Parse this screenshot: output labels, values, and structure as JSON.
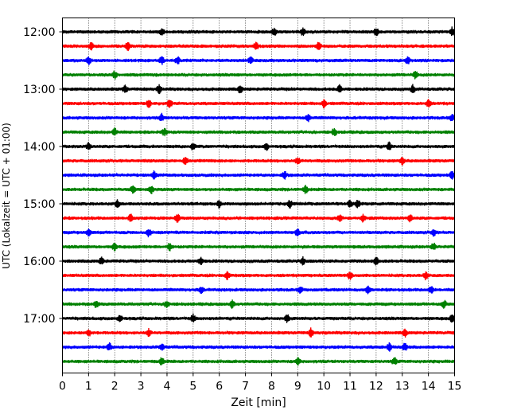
{
  "chart_data": {
    "type": "line",
    "title": "",
    "xlabel": "Zeit  [min]",
    "ylabel": "UTC (Lokalzeit = UTC + 01:00)",
    "xlim": [
      0,
      15
    ],
    "x_ticks": [
      0,
      1,
      2,
      3,
      4,
      5,
      6,
      7,
      8,
      9,
      10,
      11,
      12,
      13,
      14,
      15
    ],
    "x_tick_labels": [
      "0",
      "1",
      "2",
      "3",
      "4",
      "5",
      "6",
      "7",
      "8",
      "9",
      "10",
      "11",
      "12",
      "13",
      "14",
      "15"
    ],
    "y_tick_labels": [
      "12:00",
      "13:00",
      "14:00",
      "15:00",
      "16:00",
      "17:00"
    ],
    "grid": "vertical dotted lines at every minute",
    "trace_colors": [
      "#000000",
      "#ff0000",
      "#0000ff",
      "#008000"
    ],
    "traces_start": [
      "12:00",
      "12:15",
      "12:30",
      "12:45",
      "13:00",
      "13:15",
      "13:30",
      "13:45",
      "14:00",
      "14:15",
      "14:30",
      "14:45",
      "15:00",
      "15:15",
      "15:30",
      "15:45",
      "16:00",
      "16:15",
      "16:30",
      "16:45",
      "17:00",
      "17:15",
      "17:30",
      "17:45"
    ],
    "trace_duration_min": 15,
    "events_min": [
      [
        3.8,
        8.1,
        9.2,
        12.0,
        14.9
      ],
      [
        1.1,
        2.5,
        7.4,
        9.8
      ],
      [
        1.0,
        3.8,
        4.4,
        7.2,
        13.2
      ],
      [
        2.0,
        13.5
      ],
      [
        2.4,
        3.7,
        6.8,
        10.6,
        13.4
      ],
      [
        3.3,
        4.1,
        10.0,
        14.0
      ],
      [
        3.8,
        9.4,
        14.9
      ],
      [
        2.0,
        3.9,
        10.4
      ],
      [
        1.0,
        5.0,
        7.8,
        12.5
      ],
      [
        4.7,
        9.0,
        13.0
      ],
      [
        3.5,
        8.5,
        14.9
      ],
      [
        2.7,
        3.4,
        9.3
      ],
      [
        2.1,
        6.0,
        8.7,
        11.0,
        11.3
      ],
      [
        2.6,
        4.4,
        10.6,
        11.5,
        13.3
      ],
      [
        1.0,
        3.3,
        9.0,
        14.2
      ],
      [
        2.0,
        4.1,
        14.2
      ],
      [
        1.5,
        5.3,
        9.2,
        12.0
      ],
      [
        6.3,
        11.0,
        13.9
      ],
      [
        5.3,
        9.1,
        11.7,
        14.1
      ],
      [
        1.3,
        4.0,
        6.5,
        14.6
      ],
      [
        2.2,
        5.0,
        8.6,
        14.9
      ],
      [
        1.0,
        3.3,
        9.5,
        13.1
      ],
      [
        1.8,
        3.8,
        12.5,
        13.1
      ],
      [
        3.8,
        9.0,
        12.7
      ]
    ]
  }
}
